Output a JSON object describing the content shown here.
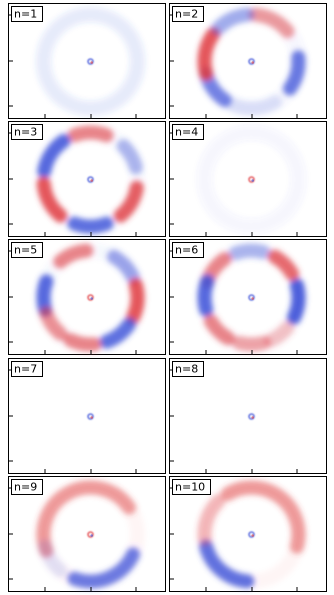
{
  "panels": [
    {
      "label": "n=1"
    },
    {
      "label": "n=2"
    },
    {
      "label": "n=3"
    },
    {
      "label": "n=4"
    },
    {
      "label": "n=5"
    },
    {
      "label": "n=6"
    },
    {
      "label": "n=7"
    },
    {
      "label": "n=8"
    },
    {
      "label": "n=9"
    },
    {
      "label": "n=10"
    }
  ]
}
